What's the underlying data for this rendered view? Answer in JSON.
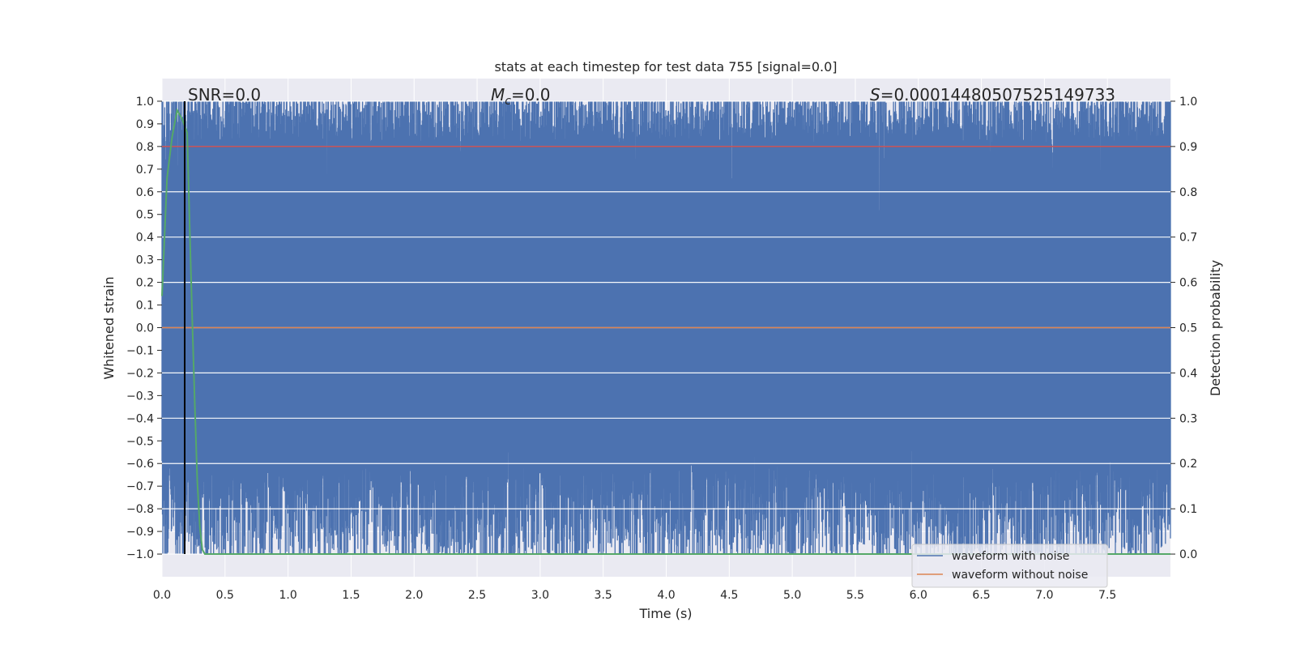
{
  "chart_data": {
    "type": "line",
    "title": "stats at each timestep for test data 755 [signal=0.0]",
    "xlabel": "Time (s)",
    "ylabel": "Whitened strain",
    "y2label": "Detection probability",
    "xlim": [
      0.0,
      8.0
    ],
    "ylim": [
      -1.1,
      1.1
    ],
    "y2lim": [
      -0.05,
      1.05
    ],
    "xticks": [
      "0.0",
      "0.5",
      "1.0",
      "1.5",
      "2.0",
      "2.5",
      "3.0",
      "3.5",
      "4.0",
      "4.5",
      "5.0",
      "5.5",
      "6.0",
      "6.5",
      "7.0",
      "7.5"
    ],
    "yticks": [
      "1.0",
      "0.9",
      "0.8",
      "0.7",
      "0.6",
      "0.5",
      "0.4",
      "0.3",
      "0.2",
      "0.1",
      "0.0",
      "−0.1",
      "−0.2",
      "−0.3",
      "−0.4",
      "−0.5",
      "−0.6",
      "−0.7",
      "−0.8",
      "−0.9",
      "−1.0"
    ],
    "y2ticks": [
      "1.0",
      "0.9",
      "0.8",
      "0.7",
      "0.6",
      "0.5",
      "0.4",
      "0.3",
      "0.2",
      "0.1",
      "0.0"
    ],
    "grid": true,
    "legend_position": "lower-right",
    "annotations": {
      "snr_prefix": "SNR=",
      "snr_value": "0.0",
      "mc_symbol": "M",
      "mc_subscript": "c",
      "mc_value": "=0.0",
      "s_symbol": "S",
      "s_value": "=0.00014480507525149733"
    },
    "marker_line_x": 0.18,
    "threshold_probability": 0.9,
    "series": [
      {
        "name": "waveform with noise",
        "color": "#4c72b0",
        "description": "dense whitened noise clipped to [-1, 1]; upper envelope mostly 0.8–1.0, lower envelope mostly -0.6 to -1.0"
      },
      {
        "name": "waveform without noise",
        "color": "#dd8452",
        "x": [
          0.0,
          8.0
        ],
        "y": [
          0.0,
          0.0
        ]
      },
      {
        "color": "#55a868",
        "x": [
          0.0,
          0.04,
          0.08,
          0.12,
          0.16,
          0.2,
          0.22,
          0.24,
          0.26,
          0.28,
          0.3,
          0.32,
          0.34,
          0.38,
          8.0
        ],
        "y": [
          0.57,
          0.83,
          0.92,
          0.98,
          0.96,
          0.93,
          0.72,
          0.52,
          0.33,
          0.16,
          0.06,
          0.01,
          0.0,
          0.0,
          0.0
        ]
      }
    ]
  }
}
